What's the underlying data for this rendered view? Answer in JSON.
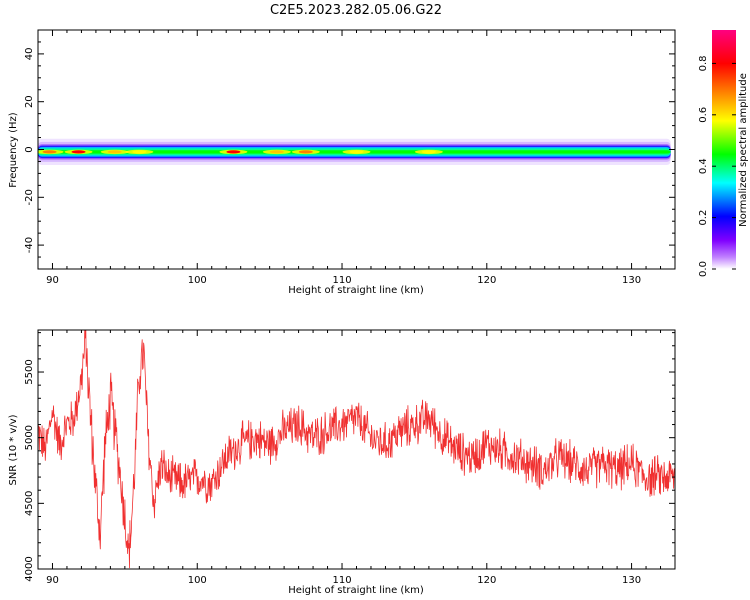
{
  "figure": {
    "title": "C2E5.2023.282.05.06.G22"
  },
  "chart_data": [
    {
      "type": "heatmap",
      "xlabel": "Height of straight line (km)",
      "ylabel": "Frequency (Hz)",
      "xlim": [
        89,
        133
      ],
      "ylim": [
        -50,
        50
      ],
      "xticks": [
        90,
        100,
        110,
        120,
        130
      ],
      "yticks": [
        -40,
        -20,
        0,
        20,
        40
      ],
      "colorbar": {
        "label": "Normalized spectral amplitude",
        "ticks": [
          0.0,
          0.2,
          0.4,
          0.6,
          0.8
        ],
        "range": [
          0,
          0.93
        ],
        "colormap": "gist_rainbow_r",
        "colors": [
          "#ffffff",
          "#8000ff",
          "#0000ff",
          "#00ffff",
          "#00ff00",
          "#ffff00",
          "#ff8000",
          "#ff0000",
          "#ff0080"
        ]
      },
      "band": {
        "center_hz": -1,
        "core_peaks": [
          {
            "x": 89.8,
            "amp": 0.75
          },
          {
            "x": 91.8,
            "amp": 0.8
          },
          {
            "x": 94.3,
            "amp": 0.62
          },
          {
            "x": 96.0,
            "amp": 0.55
          },
          {
            "x": 102.5,
            "amp": 0.82
          },
          {
            "x": 105.5,
            "amp": 0.7
          },
          {
            "x": 107.5,
            "amp": 0.78
          },
          {
            "x": 111.0,
            "amp": 0.6
          },
          {
            "x": 116.0,
            "amp": 0.58
          }
        ]
      }
    },
    {
      "type": "line",
      "xlabel": "Height of straight line (km)",
      "ylabel": "SNR (10 * v/v)",
      "xlim": [
        89,
        133
      ],
      "ylim": [
        4000,
        5820
      ],
      "xticks": [
        90,
        100,
        110,
        120,
        130
      ],
      "yticks": [
        4000,
        4500,
        5000,
        5500
      ],
      "series": [
        {
          "color": "#f03030",
          "x": [
            89.0,
            89.5,
            90.0,
            90.5,
            91.0,
            91.5,
            92.0,
            92.3,
            92.6,
            93.0,
            93.3,
            93.6,
            94.0,
            94.5,
            95.0,
            95.3,
            95.6,
            96.0,
            96.3,
            96.6,
            97.0,
            97.5,
            98.0,
            99.0,
            100.0,
            101.0,
            102.0,
            103.0,
            104.0,
            105.0,
            106.0,
            107.0,
            108.0,
            109.0,
            110.0,
            111.0,
            112.0,
            113.0,
            114.0,
            115.0,
            116.0,
            117.0,
            118.0,
            119.0,
            120.0,
            121.0,
            122.0,
            123.0,
            124.0,
            125.0,
            126.0,
            127.0,
            128.0,
            129.0,
            130.0,
            131.0,
            132.0,
            133.0
          ],
          "y": [
            5050,
            4900,
            5200,
            4950,
            5100,
            5150,
            5450,
            5750,
            5200,
            4600,
            4250,
            4900,
            5300,
            4900,
            4400,
            4100,
            4600,
            5500,
            5650,
            5000,
            4500,
            4800,
            4700,
            4650,
            4700,
            4650,
            4850,
            4950,
            5000,
            4950,
            5050,
            5100,
            5000,
            5050,
            5100,
            5150,
            5000,
            4950,
            5050,
            5100,
            5150,
            5000,
            4900,
            4850,
            4950,
            4900,
            4850,
            4800,
            4750,
            4850,
            4800,
            4750,
            4800,
            4750,
            4800,
            4700,
            4700,
            4700
          ]
        }
      ]
    }
  ]
}
